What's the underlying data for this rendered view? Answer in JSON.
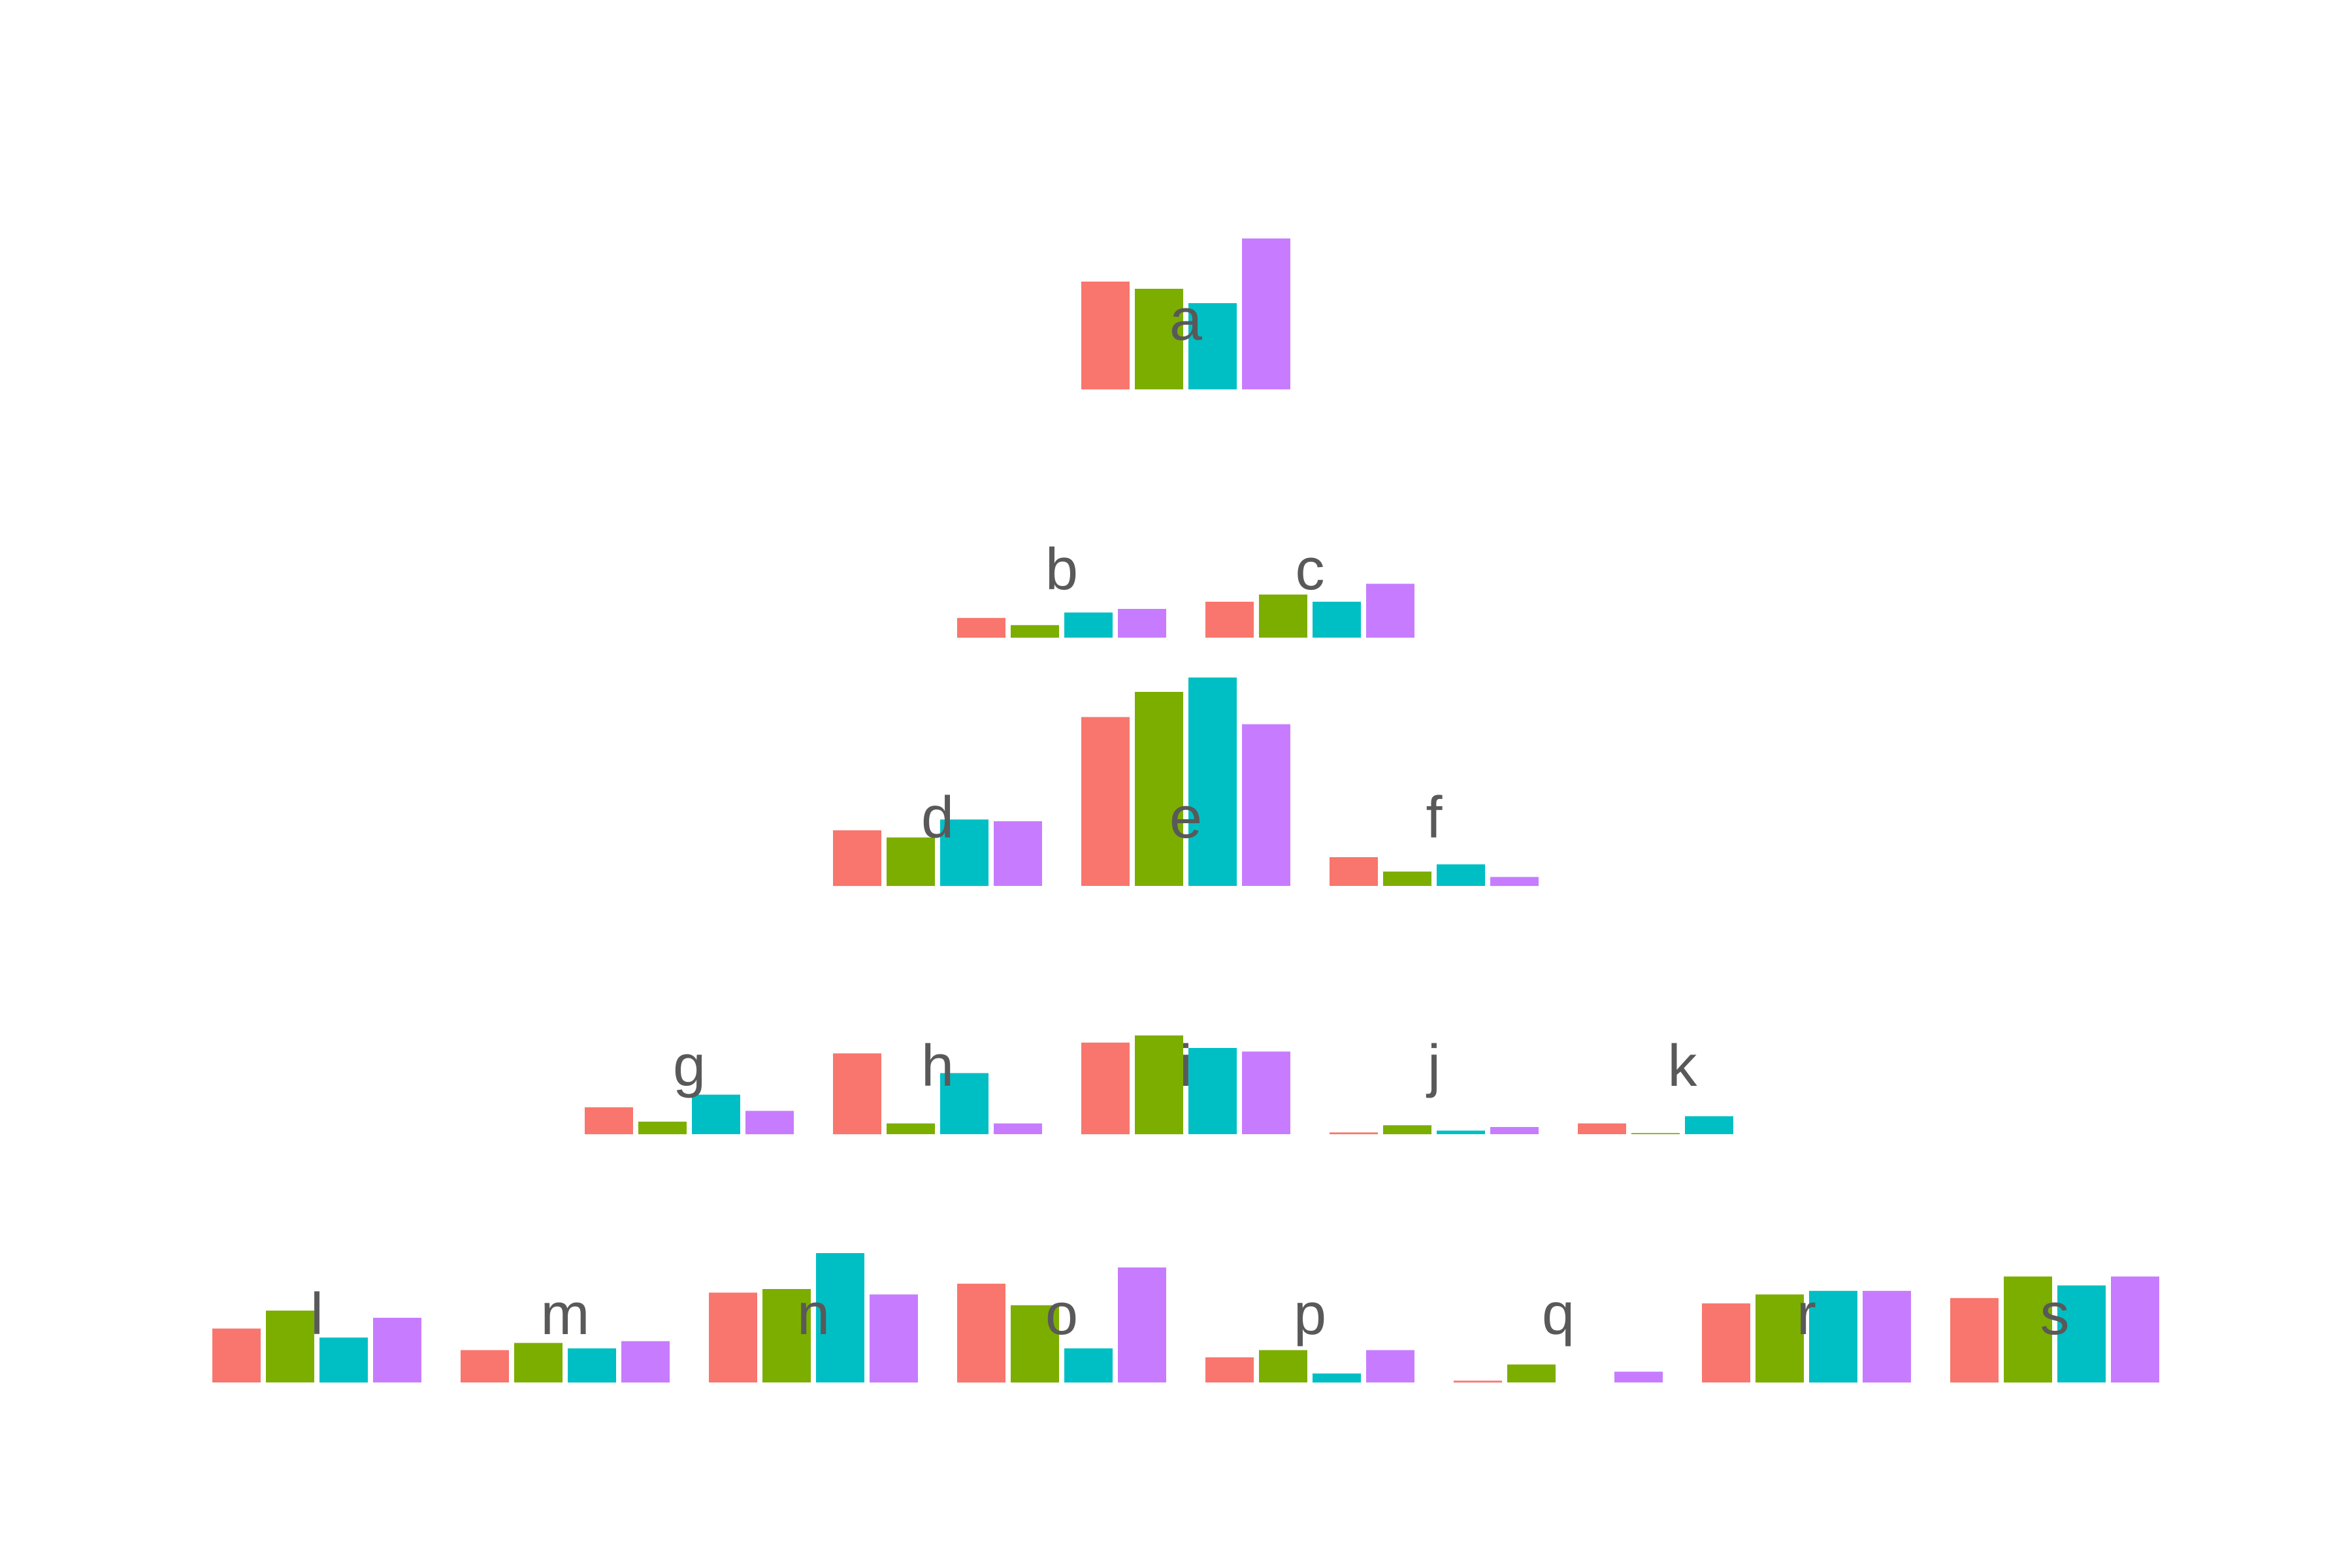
{
  "chart_data": {
    "type": "bar",
    "title": "",
    "xlabel": "",
    "ylabel": "",
    "grid": false,
    "legend": "none",
    "ylim": [
      0,
      1
    ],
    "series_colors": [
      "#F8766D",
      "#7CAE00",
      "#00BFC4",
      "#C77CFF"
    ],
    "series": [
      {
        "index": 0
      },
      {
        "index": 1
      },
      {
        "index": 2
      },
      {
        "index": 3
      }
    ],
    "nodes": [
      {
        "label": "a",
        "level": 0,
        "values": [
          0.3,
          0.28,
          0.24,
          0.42
        ]
      },
      {
        "label": "b",
        "level": 1,
        "values": [
          0.055,
          0.035,
          0.07,
          0.08
        ]
      },
      {
        "label": "c",
        "level": 1,
        "values": [
          0.1,
          0.12,
          0.1,
          0.15
        ]
      },
      {
        "label": "d",
        "level": 2,
        "values": [
          0.155,
          0.135,
          0.185,
          0.18
        ]
      },
      {
        "label": "e",
        "level": 2,
        "values": [
          0.47,
          0.54,
          0.58,
          0.45
        ]
      },
      {
        "label": "f",
        "level": 2,
        "values": [
          0.08,
          0.04,
          0.06,
          0.025
        ]
      },
      {
        "label": "g",
        "level": 3,
        "values": [
          0.075,
          0.035,
          0.11,
          0.065
        ]
      },
      {
        "label": "h",
        "level": 3,
        "values": [
          0.225,
          0.03,
          0.17,
          0.03
        ]
      },
      {
        "label": "i",
        "level": 3,
        "values": [
          0.255,
          0.275,
          0.24,
          0.23
        ]
      },
      {
        "label": "j",
        "level": 3,
        "values": [
          0.005,
          0.025,
          0.01,
          0.02
        ]
      },
      {
        "label": "k",
        "level": 3,
        "values": [
          0.03,
          0.003,
          0.05,
          0.0
        ]
      },
      {
        "label": "l",
        "level": 4,
        "values": [
          0.15,
          0.2,
          0.125,
          0.18
        ]
      },
      {
        "label": "m",
        "level": 4,
        "values": [
          0.09,
          0.11,
          0.095,
          0.115
        ]
      },
      {
        "label": "n",
        "level": 4,
        "values": [
          0.25,
          0.26,
          0.36,
          0.245
        ]
      },
      {
        "label": "o",
        "level": 4,
        "values": [
          0.275,
          0.215,
          0.095,
          0.32
        ]
      },
      {
        "label": "p",
        "level": 4,
        "values": [
          0.07,
          0.09,
          0.025,
          0.09
        ]
      },
      {
        "label": "q",
        "level": 4,
        "values": [
          0.005,
          0.05,
          0.0,
          0.03
        ]
      },
      {
        "label": "r",
        "level": 4,
        "values": [
          0.22,
          0.245,
          0.255,
          0.255
        ]
      },
      {
        "label": "s",
        "level": 4,
        "values": [
          0.235,
          0.295,
          0.27,
          0.295
        ]
      }
    ]
  }
}
